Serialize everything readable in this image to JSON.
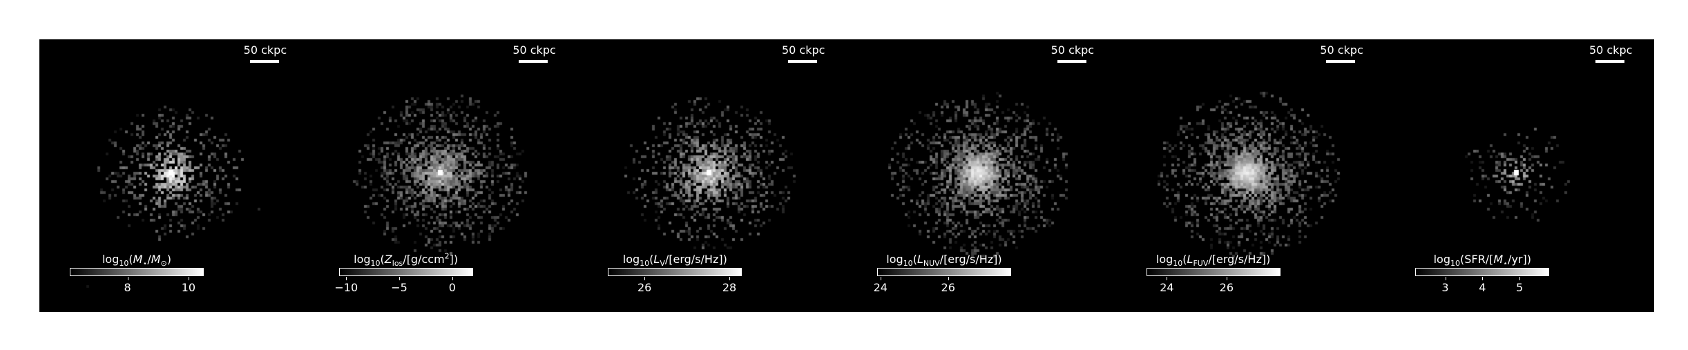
{
  "panels": [
    {
      "id": "mass",
      "scale_label": "50 ckpc",
      "cbar_label": "log10(M⋆/M⊙)",
      "ticks": [
        {
          "label": "8",
          "pos": 0.43
        },
        {
          "label": "10",
          "pos": 0.89
        }
      ],
      "spread": 0.42,
      "density": 0.55,
      "center_gain": 1.0,
      "core": true
    },
    {
      "id": "metals",
      "scale_label": "50 ckpc",
      "cbar_label": "log10(Zlos/[g/ccm²])",
      "ticks": [
        {
          "label": "−10",
          "pos": 0.05
        },
        {
          "label": "−5",
          "pos": 0.45
        },
        {
          "label": "0",
          "pos": 0.85
        }
      ],
      "spread": 0.55,
      "density": 0.8,
      "center_gain": 0.7,
      "core": true
    },
    {
      "id": "lv",
      "scale_label": "50 ckpc",
      "cbar_label": "log10(LV/[erg/s/Hz])",
      "ticks": [
        {
          "label": "26",
          "pos": 0.27
        },
        {
          "label": "28",
          "pos": 0.91
        }
      ],
      "spread": 0.52,
      "density": 0.72,
      "center_gain": 0.85,
      "core": true
    },
    {
      "id": "lnuv",
      "scale_label": "50 ckpc",
      "cbar_label": "log10(LNUV/[erg/s/Hz])",
      "ticks": [
        {
          "label": "24",
          "pos": 0.02
        },
        {
          "label": "26",
          "pos": 0.53
        }
      ],
      "spread": 0.58,
      "density": 0.8,
      "center_gain": 0.75,
      "core": false
    },
    {
      "id": "lfuv",
      "scale_label": "50 ckpc",
      "cbar_label": "log10(LFUV/[erg/s/Hz])",
      "ticks": [
        {
          "label": "24",
          "pos": 0.15
        },
        {
          "label": "26",
          "pos": 0.6
        }
      ],
      "spread": 0.58,
      "density": 0.82,
      "center_gain": 0.75,
      "core": false
    },
    {
      "id": "sfr",
      "scale_label": "50 ckpc",
      "cbar_label": "log10(SFR/[M⋆/yr])",
      "ticks": [
        {
          "label": "3",
          "pos": 0.22
        },
        {
          "label": "4",
          "pos": 0.5
        },
        {
          "label": "5",
          "pos": 0.78
        }
      ],
      "spread": 0.25,
      "density": 0.3,
      "center_gain": 0.6,
      "core": true
    }
  ]
}
